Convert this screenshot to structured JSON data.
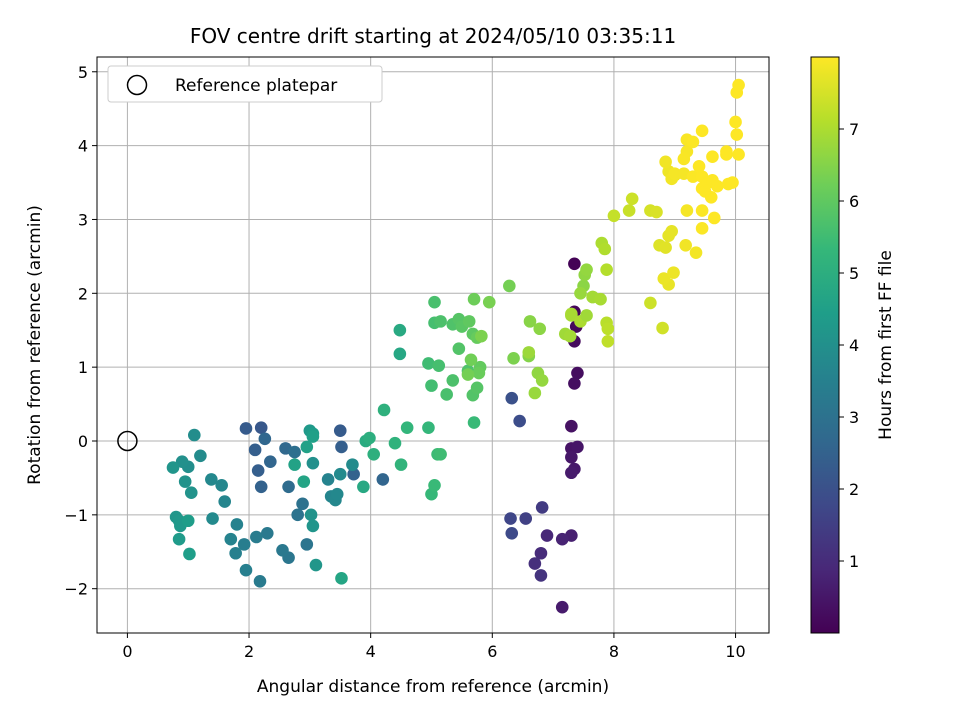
{
  "chart_data": {
    "type": "scatter",
    "title": "FOV centre drift starting at 2024/05/10 03:35:11",
    "xlabel": "Angular distance from reference (arcmin)",
    "ylabel": "Rotation from reference (arcmin)",
    "xlim": [
      -0.5,
      10.55
    ],
    "ylim": [
      -2.6,
      5.2
    ],
    "xticks": [
      "0",
      "2",
      "4",
      "6",
      "8",
      "10"
    ],
    "yticks": [
      "−2",
      "−1",
      "0",
      "1",
      "2",
      "3",
      "4",
      "5"
    ],
    "grid": true,
    "legend": {
      "position": "top-left",
      "label": "Reference platepar",
      "marker": "open circle"
    },
    "reference_point": {
      "x": 0,
      "y": 0
    },
    "colorbar": {
      "label": "Hours from first FF file",
      "range": [
        0,
        8.0
      ],
      "ticks": [
        "1",
        "2",
        "3",
        "4",
        "5",
        "6",
        "7"
      ],
      "colormap": "viridis"
    },
    "colormap_stops": [
      "#440154",
      "#482878",
      "#3e4989",
      "#31688e",
      "#26828e",
      "#1f9e89",
      "#35b779",
      "#6ece58",
      "#b5de2b",
      "#fde725"
    ],
    "points": [
      [
        7.35,
        2.4,
        0.05
      ],
      [
        7.35,
        1.75,
        0.12
      ],
      [
        7.38,
        1.55,
        0.18
      ],
      [
        7.35,
        1.35,
        0.22
      ],
      [
        7.4,
        0.92,
        0.28
      ],
      [
        7.35,
        0.78,
        0.33
      ],
      [
        7.3,
        0.2,
        0.38
      ],
      [
        7.3,
        -0.1,
        0.42
      ],
      [
        7.4,
        -0.08,
        0.46
      ],
      [
        7.3,
        -0.22,
        0.5
      ],
      [
        7.35,
        -0.38,
        0.55
      ],
      [
        7.3,
        -0.43,
        0.6
      ],
      [
        7.3,
        -1.28,
        0.7
      ],
      [
        7.15,
        -1.33,
        0.8
      ],
      [
        6.9,
        -1.28,
        0.9
      ],
      [
        6.8,
        -1.52,
        1.0
      ],
      [
        6.7,
        -1.66,
        1.1
      ],
      [
        6.8,
        -1.82,
        1.2
      ],
      [
        7.15,
        -2.25,
        0.6
      ],
      [
        6.82,
        -0.9,
        1.4
      ],
      [
        6.55,
        -1.05,
        1.55
      ],
      [
        6.3,
        -1.05,
        1.7
      ],
      [
        6.32,
        -1.25,
        1.8
      ],
      [
        6.32,
        0.58,
        2.0
      ],
      [
        6.45,
        0.27,
        1.9
      ],
      [
        2.2,
        0.18,
        2.2
      ],
      [
        1.95,
        0.17,
        2.3
      ],
      [
        2.1,
        -0.12,
        2.4
      ],
      [
        2.15,
        -0.4,
        2.4
      ],
      [
        2.2,
        -0.62,
        2.5
      ],
      [
        2.35,
        -0.28,
        2.6
      ],
      [
        2.6,
        -0.1,
        2.7
      ],
      [
        2.65,
        -0.62,
        2.8
      ],
      [
        2.75,
        -0.15,
        2.9
      ],
      [
        2.88,
        -0.85,
        3.0
      ],
      [
        2.8,
        -1.0,
        3.05
      ],
      [
        2.95,
        -1.4,
        3.1
      ],
      [
        2.65,
        -1.58,
        3.15
      ],
      [
        2.55,
        -1.48,
        3.2
      ],
      [
        2.3,
        -1.25,
        3.25
      ],
      [
        2.18,
        -1.9,
        3.3
      ],
      [
        2.12,
        -1.3,
        3.35
      ],
      [
        1.92,
        -1.4,
        3.4
      ],
      [
        1.95,
        -1.75,
        3.45
      ],
      [
        1.78,
        -1.52,
        3.5
      ],
      [
        1.8,
        -1.13,
        3.55
      ],
      [
        1.7,
        -1.33,
        3.6
      ],
      [
        1.6,
        -0.82,
        3.65
      ],
      [
        1.55,
        -0.6,
        3.7
      ],
      [
        1.38,
        -0.52,
        3.75
      ],
      [
        1.4,
        -1.05,
        3.8
      ],
      [
        1.2,
        -0.2,
        3.85
      ],
      [
        1.1,
        0.08,
        3.9
      ],
      [
        1.0,
        -0.35,
        3.95
      ],
      [
        0.9,
        -0.28,
        4.0
      ],
      [
        0.95,
        -0.55,
        4.05
      ],
      [
        1.05,
        -0.7,
        4.1
      ],
      [
        0.75,
        -0.36,
        4.15
      ],
      [
        0.8,
        -1.03,
        4.2
      ],
      [
        0.85,
        -1.08,
        4.25
      ],
      [
        0.87,
        -1.15,
        4.3
      ],
      [
        0.85,
        -1.33,
        4.35
      ],
      [
        1.0,
        -1.08,
        4.4
      ],
      [
        1.02,
        -1.53,
        4.45
      ],
      [
        2.26,
        0.03,
        2.65
      ],
      [
        3.5,
        0.14,
        2.3
      ],
      [
        3.52,
        -0.08,
        2.4
      ],
      [
        3.72,
        -0.45,
        2.5
      ],
      [
        4.2,
        -0.52,
        2.6
      ],
      [
        3.3,
        -0.52,
        3.6
      ],
      [
        3.35,
        -0.75,
        3.65
      ],
      [
        3.42,
        -0.8,
        3.7
      ],
      [
        3.45,
        -0.72,
        3.75
      ],
      [
        3.5,
        -0.45,
        3.8
      ],
      [
        3.7,
        -0.32,
        3.85
      ],
      [
        3.05,
        -0.3,
        4.0
      ],
      [
        3.02,
        -1.0,
        4.1
      ],
      [
        3.05,
        -1.15,
        4.15
      ],
      [
        3.1,
        -1.68,
        4.2
      ],
      [
        3.0,
        0.14,
        4.3
      ],
      [
        3.05,
        0.1,
        4.4
      ],
      [
        3.05,
        0.06,
        4.5
      ],
      [
        2.95,
        -0.08,
        4.55
      ],
      [
        2.75,
        -0.32,
        4.6
      ],
      [
        2.9,
        -0.55,
        4.65
      ],
      [
        3.52,
        -1.86,
        4.7
      ],
      [
        3.88,
        -0.62,
        4.8
      ],
      [
        3.92,
        0.0,
        4.9
      ],
      [
        3.98,
        0.04,
        5.0
      ],
      [
        4.05,
        -0.18,
        5.05
      ],
      [
        4.22,
        0.42,
        5.1
      ],
      [
        4.4,
        -0.03,
        5.15
      ],
      [
        4.5,
        -0.32,
        5.2
      ],
      [
        4.6,
        0.18,
        5.25
      ],
      [
        4.95,
        0.18,
        5.3
      ],
      [
        5.0,
        -0.72,
        5.35
      ],
      [
        5.05,
        -0.6,
        5.4
      ],
      [
        5.1,
        -0.18,
        5.45
      ],
      [
        5.15,
        -0.18,
        5.5
      ],
      [
        4.48,
        1.18,
        4.75
      ],
      [
        4.48,
        1.5,
        4.85
      ],
      [
        4.95,
        1.05,
        5.5
      ],
      [
        5.0,
        0.75,
        5.55
      ],
      [
        5.12,
        1.02,
        5.6
      ],
      [
        5.25,
        0.63,
        5.65
      ],
      [
        5.35,
        0.82,
        5.7
      ],
      [
        5.6,
        0.95,
        5.75
      ],
      [
        5.68,
        0.62,
        5.8
      ],
      [
        5.75,
        0.72,
        5.85
      ],
      [
        5.7,
        0.25,
        5.4
      ],
      [
        5.05,
        1.6,
        5.6
      ],
      [
        5.05,
        1.88,
        5.65
      ],
      [
        5.15,
        1.62,
        5.7
      ],
      [
        5.35,
        1.58,
        5.75
      ],
      [
        5.45,
        1.25,
        5.8
      ],
      [
        5.45,
        1.65,
        5.85
      ],
      [
        5.5,
        1.55,
        5.9
      ],
      [
        5.68,
        1.45,
        5.95
      ],
      [
        5.62,
        1.62,
        6.0
      ],
      [
        5.8,
        1.0,
        6.05
      ],
      [
        5.75,
        1.4,
        6.1
      ],
      [
        5.78,
        0.92,
        6.15
      ],
      [
        5.7,
        1.92,
        6.2
      ],
      [
        5.65,
        1.1,
        6.25
      ],
      [
        5.6,
        0.9,
        6.3
      ],
      [
        5.95,
        1.88,
        6.35
      ],
      [
        5.82,
        1.42,
        6.4
      ],
      [
        6.28,
        2.1,
        6.3
      ],
      [
        6.35,
        1.12,
        6.4
      ],
      [
        6.6,
        1.15,
        6.5
      ],
      [
        6.62,
        1.62,
        6.55
      ],
      [
        6.78,
        1.52,
        6.6
      ],
      [
        6.75,
        0.92,
        6.65
      ],
      [
        6.82,
        0.82,
        6.7
      ],
      [
        6.7,
        0.65,
        6.75
      ],
      [
        6.6,
        1.2,
        6.8
      ],
      [
        7.2,
        1.45,
        6.85
      ],
      [
        7.28,
        1.42,
        6.9
      ],
      [
        7.3,
        1.7,
        6.92
      ],
      [
        7.3,
        1.72,
        6.95
      ],
      [
        7.45,
        1.62,
        7.0
      ],
      [
        7.5,
        2.1,
        6.6
      ],
      [
        7.52,
        2.25,
        6.65
      ],
      [
        7.55,
        2.32,
        6.7
      ],
      [
        7.45,
        2.0,
        6.75
      ],
      [
        7.65,
        1.95,
        6.8
      ],
      [
        7.55,
        1.7,
        6.85
      ],
      [
        7.65,
        1.95,
        6.9
      ],
      [
        7.78,
        1.92,
        6.95
      ],
      [
        7.8,
        2.68,
        7.0
      ],
      [
        7.85,
        2.6,
        7.05
      ],
      [
        7.88,
        2.32,
        7.1
      ],
      [
        7.88,
        1.6,
        7.15
      ],
      [
        7.9,
        1.52,
        7.2
      ],
      [
        7.9,
        1.35,
        7.25
      ],
      [
        8.0,
        3.05,
        7.3
      ],
      [
        8.25,
        3.12,
        7.35
      ],
      [
        8.3,
        3.28,
        7.4
      ],
      [
        8.6,
        3.12,
        7.5
      ],
      [
        8.7,
        3.1,
        7.55
      ],
      [
        8.6,
        1.87,
        7.4
      ],
      [
        8.8,
        1.53,
        7.45
      ],
      [
        8.75,
        2.65,
        7.6
      ],
      [
        8.85,
        2.62,
        7.65
      ],
      [
        8.9,
        2.78,
        7.7
      ],
      [
        8.95,
        2.84,
        7.72
      ],
      [
        8.9,
        2.12,
        7.75
      ],
      [
        8.82,
        2.2,
        7.78
      ],
      [
        8.98,
        2.28,
        7.8
      ],
      [
        9.0,
        3.6,
        7.8
      ],
      [
        8.9,
        3.65,
        7.82
      ],
      [
        8.85,
        3.78,
        7.85
      ],
      [
        8.95,
        3.55,
        7.87
      ],
      [
        9.0,
        3.62,
        7.9
      ],
      [
        9.15,
        3.62,
        7.9
      ],
      [
        9.2,
        3.92,
        7.92
      ],
      [
        9.15,
        3.82,
        7.95
      ],
      [
        9.2,
        4.08,
        7.95
      ],
      [
        9.3,
        4.05,
        7.97
      ],
      [
        9.3,
        3.58,
        7.98
      ],
      [
        9.45,
        3.58,
        8.0
      ],
      [
        9.4,
        3.72,
        8.0
      ],
      [
        9.45,
        4.2,
        8.0
      ],
      [
        9.45,
        3.42,
        8.0
      ],
      [
        9.5,
        3.38,
        8.0
      ],
      [
        9.55,
        3.5,
        8.0
      ],
      [
        9.6,
        3.3,
        8.0
      ],
      [
        9.62,
        3.53,
        8.0
      ],
      [
        9.7,
        3.45,
        8.0
      ],
      [
        9.85,
        3.92,
        8.0
      ],
      [
        9.88,
        3.48,
        8.0
      ],
      [
        9.95,
        3.5,
        8.0
      ],
      [
        10.0,
        4.32,
        8.0
      ],
      [
        10.02,
        4.72,
        8.0
      ],
      [
        10.05,
        4.82,
        8.0
      ],
      [
        10.02,
        4.15,
        8.0
      ],
      [
        10.05,
        3.88,
        8.0
      ],
      [
        9.65,
        3.02,
        8.0
      ],
      [
        9.45,
        2.88,
        7.98
      ],
      [
        9.45,
        3.12,
        7.97
      ],
      [
        9.2,
        3.12,
        7.9
      ],
      [
        9.18,
        2.65,
        7.85
      ],
      [
        9.35,
        2.55,
        7.88
      ],
      [
        9.62,
        3.85,
        8.0
      ],
      [
        9.85,
        3.88,
        8.0
      ]
    ]
  }
}
